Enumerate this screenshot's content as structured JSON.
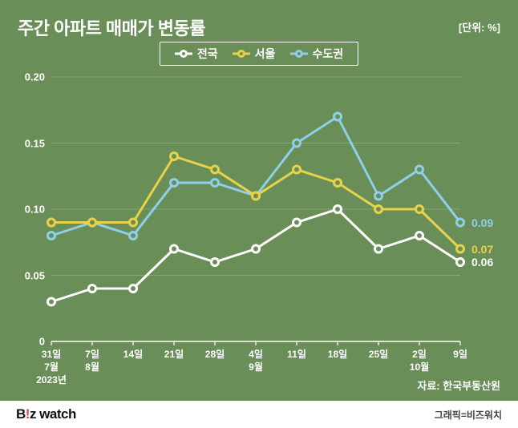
{
  "title": "주간 아파트 매매가 변동률",
  "unit_label": "[단위: %]",
  "legend": [
    {
      "label": "전국",
      "color": "#ffffff"
    },
    {
      "label": "서울",
      "color": "#e8d24a"
    },
    {
      "label": "수도권",
      "color": "#8fd0e8"
    }
  ],
  "chart": {
    "type": "line",
    "background_color": "#6a8e57",
    "grid_color": "#87a476",
    "axis_color": "#ffffff",
    "ylim": [
      0,
      0.2
    ],
    "yticks": [
      0,
      0.05,
      0.1,
      0.15,
      0.2
    ],
    "ytick_labels": [
      "0",
      "0.05",
      "0.10",
      "0.15",
      "0.20"
    ],
    "xticks": [
      "31일\n7월\n2023년",
      "7일\n8월",
      "14일",
      "21일",
      "28일",
      "4일\n9월",
      "11일",
      "18일",
      "25일",
      "2일\n10월",
      "9일"
    ],
    "series": [
      {
        "name": "전국",
        "color": "#ffffff",
        "line_width": 3,
        "marker_size": 9,
        "values": [
          0.03,
          0.04,
          0.04,
          0.07,
          0.06,
          0.07,
          0.09,
          0.1,
          0.07,
          0.08,
          0.06
        ],
        "end_label": "0.06"
      },
      {
        "name": "서울",
        "color": "#e8d24a",
        "line_width": 3,
        "marker_size": 9,
        "values": [
          0.09,
          0.09,
          0.09,
          0.14,
          0.13,
          0.11,
          0.13,
          0.12,
          0.1,
          0.1,
          0.07
        ],
        "end_label": "0.07"
      },
      {
        "name": "수도권",
        "color": "#8fd0e8",
        "line_width": 3,
        "marker_size": 9,
        "values": [
          0.08,
          0.09,
          0.08,
          0.12,
          0.12,
          0.11,
          0.15,
          0.17,
          0.11,
          0.13,
          0.09
        ],
        "end_label": "0.09"
      }
    ]
  },
  "source": "자료: 한국부동산원",
  "logo_parts": {
    "pre": "B",
    "ex": "!",
    "post": "z watch"
  },
  "credit": "그래픽=비즈워치"
}
